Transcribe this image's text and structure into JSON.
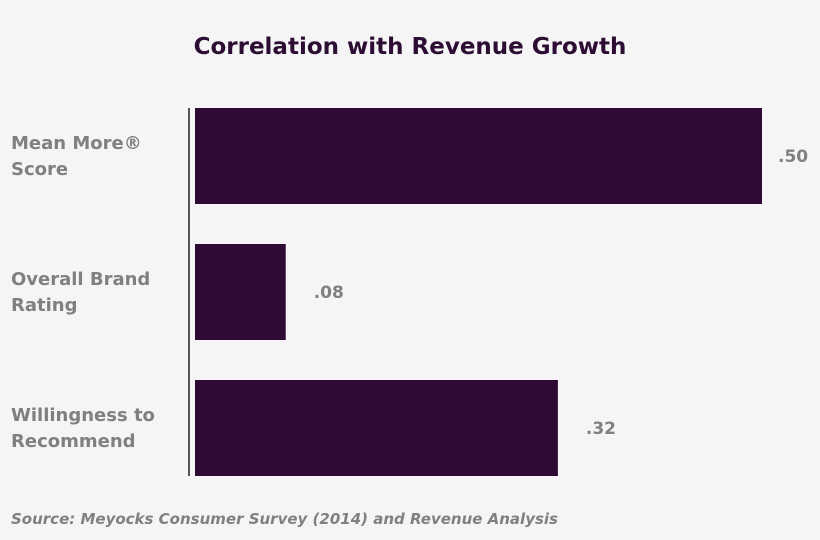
{
  "chart_data": {
    "type": "bar",
    "orientation": "horizontal",
    "title": "Correlation with Revenue Growth",
    "categories": [
      [
        "Mean More®",
        "Score"
      ],
      [
        "Overall Brand",
        "Rating"
      ],
      [
        "Willingness to",
        "Recommend"
      ]
    ],
    "values": [
      0.5,
      0.08,
      0.32
    ],
    "data_labels": [
      ".50",
      ".08",
      ".32"
    ],
    "xlim": [
      0,
      0.5
    ],
    "grid": false,
    "colors": {
      "bar": "#2f0a35",
      "text": "#808080",
      "title": "#2e0d35",
      "axis": "#555555",
      "background": "#f5f5f5"
    },
    "source": "Source: Meyocks Consumer Survey (2014) and Revenue Analysis"
  }
}
